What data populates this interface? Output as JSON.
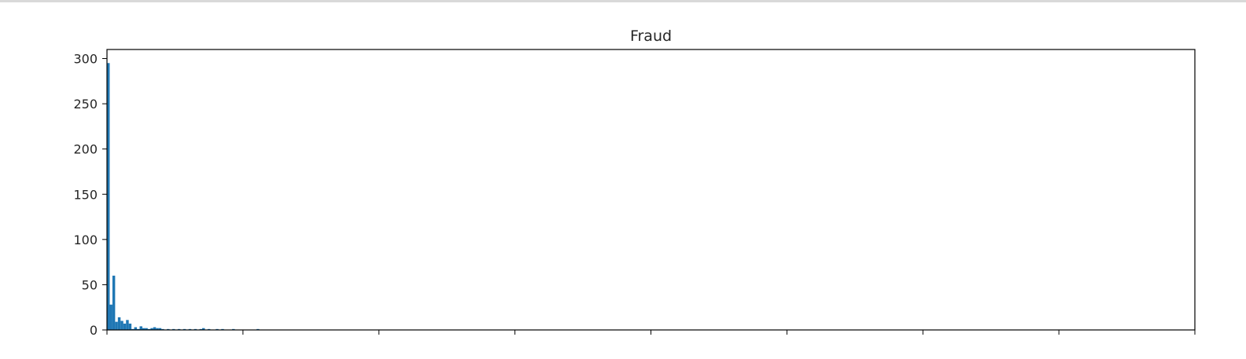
{
  "chart_data": {
    "type": "bar",
    "title": "Fraud",
    "xlabel": "",
    "ylabel": "",
    "ylim": [
      0,
      310
    ],
    "xlim": [
      0,
      1000
    ],
    "yticks": [
      0,
      50,
      100,
      150,
      200,
      250,
      300
    ],
    "xtick_count": 9,
    "grid": false,
    "bar_width": 2.5,
    "color": "#1f77b4",
    "bins": [
      {
        "x": 0.0,
        "value": 295
      },
      {
        "x": 2.5,
        "value": 28
      },
      {
        "x": 5.0,
        "value": 60
      },
      {
        "x": 7.5,
        "value": 9
      },
      {
        "x": 10.0,
        "value": 14
      },
      {
        "x": 12.5,
        "value": 10
      },
      {
        "x": 15.0,
        "value": 7
      },
      {
        "x": 17.5,
        "value": 11
      },
      {
        "x": 20.0,
        "value": 7
      },
      {
        "x": 22.5,
        "value": 1
      },
      {
        "x": 25.0,
        "value": 3
      },
      {
        "x": 27.5,
        "value": 1
      },
      {
        "x": 30.0,
        "value": 4
      },
      {
        "x": 32.5,
        "value": 2
      },
      {
        "x": 35.0,
        "value": 2
      },
      {
        "x": 37.5,
        "value": 1
      },
      {
        "x": 40.0,
        "value": 2
      },
      {
        "x": 42.5,
        "value": 3
      },
      {
        "x": 45.0,
        "value": 2
      },
      {
        "x": 47.5,
        "value": 2
      },
      {
        "x": 50.0,
        "value": 1
      },
      {
        "x": 55.0,
        "value": 1
      },
      {
        "x": 60.0,
        "value": 1
      },
      {
        "x": 65.0,
        "value": 1
      },
      {
        "x": 70.0,
        "value": 1
      },
      {
        "x": 75.0,
        "value": 1
      },
      {
        "x": 80.0,
        "value": 1
      },
      {
        "x": 85.0,
        "value": 1
      },
      {
        "x": 87.5,
        "value": 2
      },
      {
        "x": 92.5,
        "value": 1
      },
      {
        "x": 100.0,
        "value": 1
      },
      {
        "x": 105.0,
        "value": 1
      },
      {
        "x": 115.0,
        "value": 1
      },
      {
        "x": 137.5,
        "value": 1
      }
    ]
  }
}
